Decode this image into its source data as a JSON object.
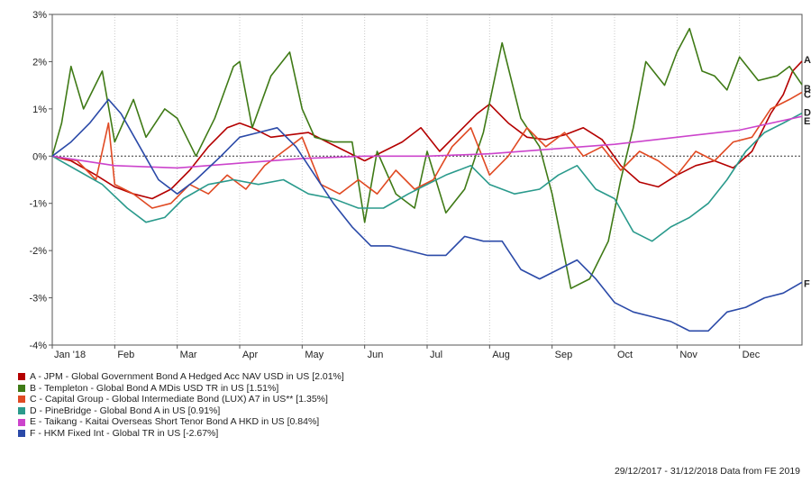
{
  "chart_data": {
    "type": "line",
    "xlabel": "",
    "ylabel": "",
    "ylim": [
      -4,
      3
    ],
    "y_ticks": [
      "3%",
      "2%",
      "1%",
      "0%",
      "-1%",
      "-2%",
      "-3%",
      "-4%"
    ],
    "x_ticks": [
      "Jan '18",
      "Feb",
      "Mar",
      "Apr",
      "May",
      "Jun",
      "Jul",
      "Aug",
      "Sep",
      "Oct",
      "Nov",
      "Dec"
    ],
    "x_range_months": [
      0,
      12
    ],
    "grid": "vertical dotted month lines, horizontal dashed zero line",
    "series": [
      {
        "id": "A",
        "color": "#b40000",
        "name": "A - JPM - Global Government Bond A Hedged Acc NAV USD in US [2.01%]",
        "x": [
          0,
          0.3,
          0.7,
          1.0,
          1.3,
          1.6,
          1.9,
          2.2,
          2.5,
          2.8,
          3.0,
          3.2,
          3.5,
          3.8,
          4.1,
          4.4,
          4.7,
          5.0,
          5.3,
          5.6,
          5.9,
          6.2,
          6.5,
          6.8,
          7.0,
          7.3,
          7.6,
          7.9,
          8.2,
          8.5,
          8.8,
          9.1,
          9.4,
          9.7,
          10.0,
          10.3,
          10.6,
          10.9,
          11.2,
          11.5,
          11.7,
          11.85,
          12.0
        ],
        "values": [
          0,
          -0.1,
          -0.4,
          -0.65,
          -0.8,
          -0.9,
          -0.7,
          -0.3,
          0.2,
          0.6,
          0.7,
          0.6,
          0.4,
          0.45,
          0.5,
          0.3,
          0.1,
          -0.1,
          0.1,
          0.3,
          0.6,
          0.1,
          0.5,
          0.9,
          1.1,
          0.7,
          0.4,
          0.35,
          0.45,
          0.6,
          0.35,
          -0.2,
          -0.55,
          -0.65,
          -0.4,
          -0.2,
          -0.1,
          -0.25,
          0.1,
          0.9,
          1.3,
          1.8,
          2.01
        ]
      },
      {
        "id": "B",
        "color": "#3f7a16",
        "name": "B - Templeton - Global Bond A MDis USD TR in US [1.51%]",
        "x": [
          0,
          0.15,
          0.3,
          0.5,
          0.8,
          1.0,
          1.3,
          1.5,
          1.8,
          2.0,
          2.3,
          2.6,
          2.9,
          3.0,
          3.2,
          3.5,
          3.8,
          4.0,
          4.2,
          4.5,
          4.8,
          5.0,
          5.2,
          5.5,
          5.8,
          6.0,
          6.3,
          6.6,
          6.9,
          7.2,
          7.5,
          7.8,
          8.0,
          8.3,
          8.6,
          8.9,
          9.1,
          9.3,
          9.5,
          9.8,
          10.0,
          10.2,
          10.4,
          10.6,
          10.8,
          11.0,
          11.3,
          11.6,
          11.8,
          12.0
        ],
        "values": [
          0,
          0.7,
          1.9,
          1.0,
          1.8,
          0.3,
          1.2,
          0.4,
          1.0,
          0.8,
          0.0,
          0.8,
          1.9,
          2.0,
          0.6,
          1.7,
          2.2,
          1.0,
          0.4,
          0.3,
          0.3,
          -1.4,
          0.1,
          -0.8,
          -1.1,
          0.1,
          -1.2,
          -0.7,
          0.5,
          2.4,
          0.8,
          0.2,
          -0.8,
          -2.8,
          -2.6,
          -1.8,
          -0.5,
          0.6,
          2.0,
          1.5,
          2.2,
          2.7,
          1.8,
          1.7,
          1.4,
          2.1,
          1.6,
          1.7,
          1.9,
          1.51
        ]
      },
      {
        "id": "C",
        "color": "#e04a23",
        "name": "C - Capital Group - Global Intermediate Bond (LUX) A7 in US** [1.35%]",
        "x": [
          0,
          0.4,
          0.7,
          0.9,
          1.0,
          1.3,
          1.6,
          1.9,
          2.2,
          2.5,
          2.8,
          3.1,
          3.4,
          3.7,
          4.0,
          4.3,
          4.6,
          4.9,
          5.2,
          5.5,
          5.8,
          6.1,
          6.4,
          6.7,
          7.0,
          7.3,
          7.6,
          7.9,
          8.2,
          8.5,
          8.8,
          9.1,
          9.4,
          9.7,
          10.0,
          10.3,
          10.6,
          10.9,
          11.2,
          11.5,
          11.8,
          12.0
        ],
        "values": [
          0,
          -0.1,
          -0.5,
          0.7,
          -0.6,
          -0.8,
          -1.1,
          -1.0,
          -0.6,
          -0.8,
          -0.4,
          -0.7,
          -0.2,
          0.1,
          0.4,
          -0.6,
          -0.8,
          -0.5,
          -0.8,
          -0.3,
          -0.7,
          -0.5,
          0.2,
          0.6,
          -0.4,
          0.0,
          0.6,
          0.2,
          0.5,
          0.0,
          0.2,
          -0.3,
          0.1,
          -0.1,
          -0.4,
          0.1,
          -0.1,
          0.3,
          0.4,
          1.0,
          1.2,
          1.35
        ]
      },
      {
        "id": "D",
        "color": "#2a9a8c",
        "name": "D - PineBridge - Global Bond A in US [0.91%]",
        "x": [
          0,
          0.4,
          0.8,
          1.2,
          1.5,
          1.8,
          2.1,
          2.5,
          2.9,
          3.3,
          3.7,
          4.1,
          4.5,
          4.9,
          5.3,
          5.7,
          6.0,
          6.3,
          6.7,
          7.0,
          7.4,
          7.8,
          8.1,
          8.4,
          8.7,
          9.0,
          9.3,
          9.6,
          9.9,
          10.2,
          10.5,
          10.8,
          11.1,
          11.4,
          11.7,
          12.0
        ],
        "values": [
          0,
          -0.3,
          -0.6,
          -1.1,
          -1.4,
          -1.3,
          -0.9,
          -0.6,
          -0.5,
          -0.6,
          -0.5,
          -0.8,
          -0.9,
          -1.1,
          -1.1,
          -0.8,
          -0.6,
          -0.4,
          -0.2,
          -0.6,
          -0.8,
          -0.7,
          -0.4,
          -0.2,
          -0.7,
          -0.9,
          -1.6,
          -1.8,
          -1.5,
          -1.3,
          -1.0,
          -0.5,
          0.1,
          0.5,
          0.7,
          0.91
        ]
      },
      {
        "id": "E",
        "color": "#cc44cc",
        "name": "E - Taikang - Kaitai Overseas Short Tenor Bond A HKD in US [0.84%]",
        "x": [
          0,
          1.0,
          2.0,
          3.0,
          4.0,
          5.0,
          6.0,
          7.0,
          8.0,
          9.0,
          10.0,
          11.0,
          12.0
        ],
        "values": [
          0,
          -0.2,
          -0.25,
          -0.15,
          -0.05,
          0.0,
          0.0,
          0.05,
          0.15,
          0.25,
          0.4,
          0.55,
          0.84
        ]
      },
      {
        "id": "F",
        "color": "#2b4aa8",
        "name": "F - HKM Fixed Int - Global TR in US [-2.67%]",
        "x": [
          0,
          0.3,
          0.6,
          0.9,
          1.1,
          1.4,
          1.7,
          2.0,
          2.3,
          2.7,
          3.0,
          3.3,
          3.6,
          3.9,
          4.2,
          4.5,
          4.8,
          5.1,
          5.4,
          5.7,
          6.0,
          6.3,
          6.6,
          6.9,
          7.2,
          7.5,
          7.8,
          8.1,
          8.4,
          8.7,
          9.0,
          9.3,
          9.6,
          9.9,
          10.2,
          10.5,
          10.8,
          11.1,
          11.4,
          11.7,
          12.0
        ],
        "values": [
          0,
          0.3,
          0.7,
          1.2,
          0.9,
          0.2,
          -0.5,
          -0.8,
          -0.5,
          0.0,
          0.4,
          0.5,
          0.6,
          0.2,
          -0.4,
          -1.0,
          -1.5,
          -1.9,
          -1.9,
          -2.0,
          -2.1,
          -2.1,
          -1.7,
          -1.8,
          -1.8,
          -2.4,
          -2.6,
          -2.4,
          -2.2,
          -2.6,
          -3.1,
          -3.3,
          -3.4,
          -3.5,
          -3.7,
          -3.7,
          -3.3,
          -3.2,
          -3.0,
          -2.9,
          -2.67
        ]
      }
    ]
  },
  "legend": [
    {
      "label": "A - JPM - Global Government Bond A Hedged Acc NAV USD in US [2.01%]",
      "color": "#b40000"
    },
    {
      "label": "B - Templeton - Global Bond A MDis USD TR in US [1.51%]",
      "color": "#3f7a16"
    },
    {
      "label": "C - Capital Group - Global Intermediate Bond (LUX) A7 in US** [1.35%]",
      "color": "#e04a23"
    },
    {
      "label": "D - PineBridge - Global Bond A in US [0.91%]",
      "color": "#2a9a8c"
    },
    {
      "label": "E - Taikang - Kaitai Overseas Short Tenor Bond A HKD in US [0.84%]",
      "color": "#cc44cc"
    },
    {
      "label": "F - HKM Fixed Int - Global TR in US [-2.67%]",
      "color": "#2b4aa8"
    }
  ],
  "footer": "29/12/2017 - 31/12/2018 Data from FE 2019"
}
